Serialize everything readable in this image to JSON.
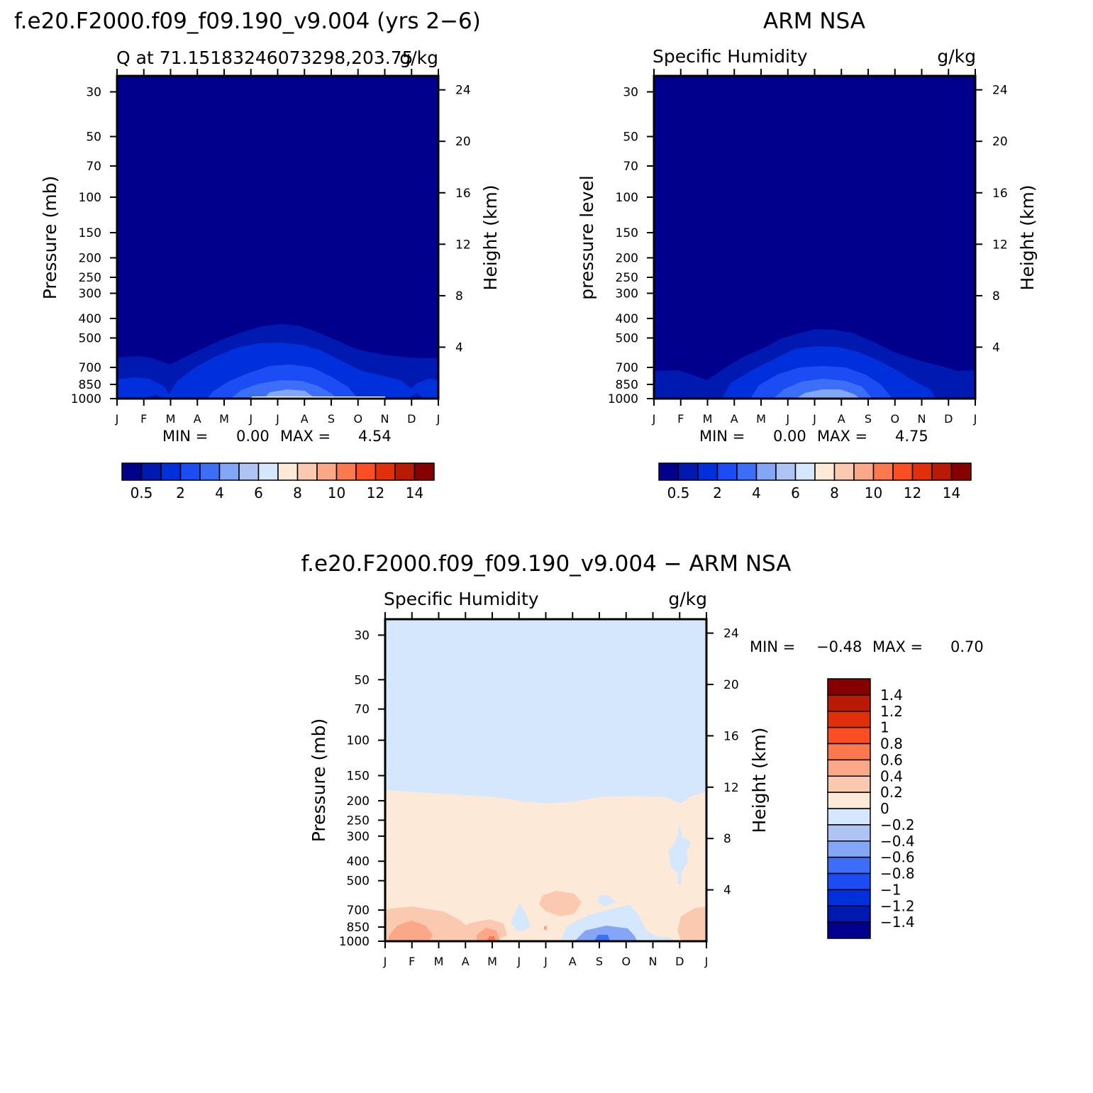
{
  "colors": {
    "model_scale": [
      "#00008c",
      "#0019b0",
      "#0030dc",
      "#1c4cf4",
      "#3c6ef7",
      "#84a6f7",
      "#aec4f5",
      "#d5e7fc",
      "#fde9d8",
      "#fbc9b0",
      "#fba888",
      "#fc7950",
      "#fb4e24",
      "#e12f0b",
      "#b91a04",
      "#870000"
    ],
    "diff_scale": [
      "#00008c",
      "#0019b0",
      "#0030dc",
      "#1c4cf4",
      "#3c6ef7",
      "#84a6f7",
      "#aec4f5",
      "#d5e7fc",
      "#fde9d8",
      "#fbc9b0",
      "#fba888",
      "#fc7950",
      "#fb4e24",
      "#e12f0b",
      "#b91a04",
      "#870000"
    ]
  },
  "chart_data": [
    {
      "type": "heatmap",
      "panel_title": "f.e20.F2000.f09_f09.190_v9.004 (yrs 2−6)",
      "subtitle_left": "Q at 71.15183246073298,203.75",
      "subtitle_right": "g/kg",
      "ylabel": "Pressure (mb)",
      "ylabel_right": "Height (km)",
      "x_ticks": [
        "J",
        "F",
        "M",
        "A",
        "M",
        "J",
        "J",
        "A",
        "S",
        "O",
        "N",
        "D",
        "J"
      ],
      "y_ticks": [
        30,
        50,
        70,
        100,
        150,
        200,
        250,
        300,
        400,
        500,
        700,
        850,
        1000
      ],
      "y_right_ticks": [
        24,
        20,
        16,
        12,
        8,
        4
      ],
      "ylim": [
        1000,
        25
      ],
      "y_scale": "log",
      "min_label": "MIN =",
      "min_value": "0.00",
      "max_label": "MAX =",
      "max_value": "4.54",
      "colorbar_labels": [
        "0.5",
        "2",
        "4",
        "6",
        "8",
        "10",
        "12",
        "14"
      ],
      "contour_levels": [
        0.5,
        1,
        2,
        3,
        4
      ],
      "max_pressure_top": [
        640,
        650,
        690,
        600,
        540,
        470,
        445,
        455,
        520,
        590,
        640,
        660,
        640
      ]
    },
    {
      "type": "heatmap",
      "panel_title": "ARM NSA",
      "subtitle_left": "Specific Humidity",
      "subtitle_right": "g/kg",
      "ylabel": "pressure level",
      "ylabel_right": "Height (km)",
      "x_ticks": [
        "J",
        "F",
        "M",
        "A",
        "M",
        "J",
        "J",
        "A",
        "S",
        "O",
        "N",
        "D",
        "J"
      ],
      "y_ticks": [
        30,
        50,
        70,
        100,
        150,
        200,
        250,
        300,
        400,
        500,
        700,
        850,
        1000
      ],
      "y_right_ticks": [
        24,
        20,
        16,
        12,
        8,
        4
      ],
      "ylim": [
        1000,
        25
      ],
      "y_scale": "log",
      "min_label": "MIN =",
      "min_value": "0.00",
      "max_label": "MAX =",
      "max_value": "4.75",
      "colorbar_labels": [
        "0.5",
        "2",
        "4",
        "6",
        "8",
        "10",
        "12",
        "14"
      ]
    },
    {
      "type": "heatmap",
      "panel_title": "f.e20.F2000.f09_f09.190_v9.004 − ARM NSA",
      "subtitle_left": "Specific Humidity",
      "subtitle_right": "g/kg",
      "ylabel": "Pressure (mb)",
      "ylabel_right": "Height (km)",
      "x_ticks": [
        "J",
        "F",
        "M",
        "A",
        "M",
        "J",
        "J",
        "A",
        "S",
        "O",
        "N",
        "D",
        "J"
      ],
      "y_ticks": [
        30,
        50,
        70,
        100,
        150,
        200,
        250,
        300,
        400,
        500,
        700,
        850,
        1000
      ],
      "y_right_ticks": [
        24,
        20,
        16,
        12,
        8,
        4
      ],
      "ylim": [
        1000,
        25
      ],
      "y_scale": "log",
      "min_label": "MIN =",
      "min_value": "−0.48",
      "max_label": "MAX =",
      "max_value": "0.70",
      "colorbar_labels": [
        "1.4",
        "1.2",
        "1",
        "0.8",
        "0.6",
        "0.4",
        "0.2",
        "0",
        "−0.2",
        "−0.4",
        "−0.6",
        "−0.8",
        "−1",
        "−1.2",
        "−1.4"
      ]
    }
  ]
}
